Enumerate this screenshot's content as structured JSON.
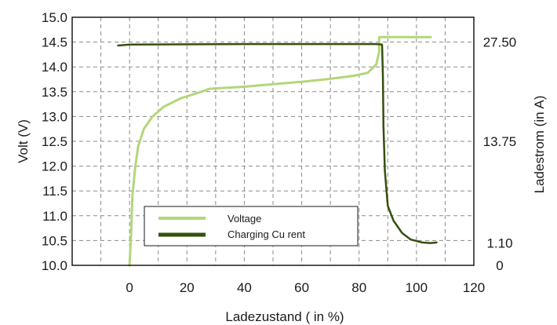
{
  "chart_data": {
    "type": "line",
    "title": "",
    "xlabel": "Ladezustand ( in %)",
    "ylabel": "Volt (V)",
    "y2label": "Ladestrom (in A)",
    "xlim": [
      -20,
      120
    ],
    "ylim": [
      10.0,
      15.0
    ],
    "x_ticks": [
      0,
      20,
      40,
      60,
      80,
      100,
      120
    ],
    "y_ticks": [
      "10.0",
      "10.5",
      "11.0",
      "11.5",
      "12.0",
      "12.5",
      "13.0",
      "13.5",
      "14.0",
      "14.5",
      "15.0"
    ],
    "y2_ticks": [
      {
        "label": "27.50",
        "at_volt": 14.5
      },
      {
        "label": "13.75",
        "at_volt": 12.5
      },
      {
        "label": "1.10",
        "at_volt": 10.45
      },
      {
        "label": "0",
        "at_volt": 10.0
      }
    ],
    "grid": true,
    "legend_position": "bottom-left",
    "series": [
      {
        "name": "Voltage",
        "color": "#b3d67a",
        "axis": "left",
        "x": [
          0,
          0.5,
          1,
          2,
          3,
          5,
          8,
          12,
          18,
          24,
          28,
          40,
          50,
          60,
          70,
          78,
          83,
          86,
          87,
          87,
          105
        ],
        "y": [
          10.0,
          10.6,
          11.4,
          12.0,
          12.4,
          12.75,
          13.0,
          13.2,
          13.37,
          13.48,
          13.56,
          13.6,
          13.65,
          13.7,
          13.76,
          13.82,
          13.88,
          14.05,
          14.3,
          14.6,
          14.6
        ]
      },
      {
        "name": "Charging Cu rent",
        "color": "#34500e",
        "axis": "right",
        "x": [
          -4,
          0,
          40,
          80,
          86,
          88,
          88.3,
          88.5,
          89,
          90,
          92,
          95,
          98,
          102,
          105,
          107
        ],
        "y": [
          14.43,
          14.45,
          14.46,
          14.46,
          14.46,
          14.45,
          13.8,
          12.8,
          11.9,
          11.2,
          10.9,
          10.65,
          10.52,
          10.46,
          10.45,
          10.46
        ]
      }
    ]
  }
}
